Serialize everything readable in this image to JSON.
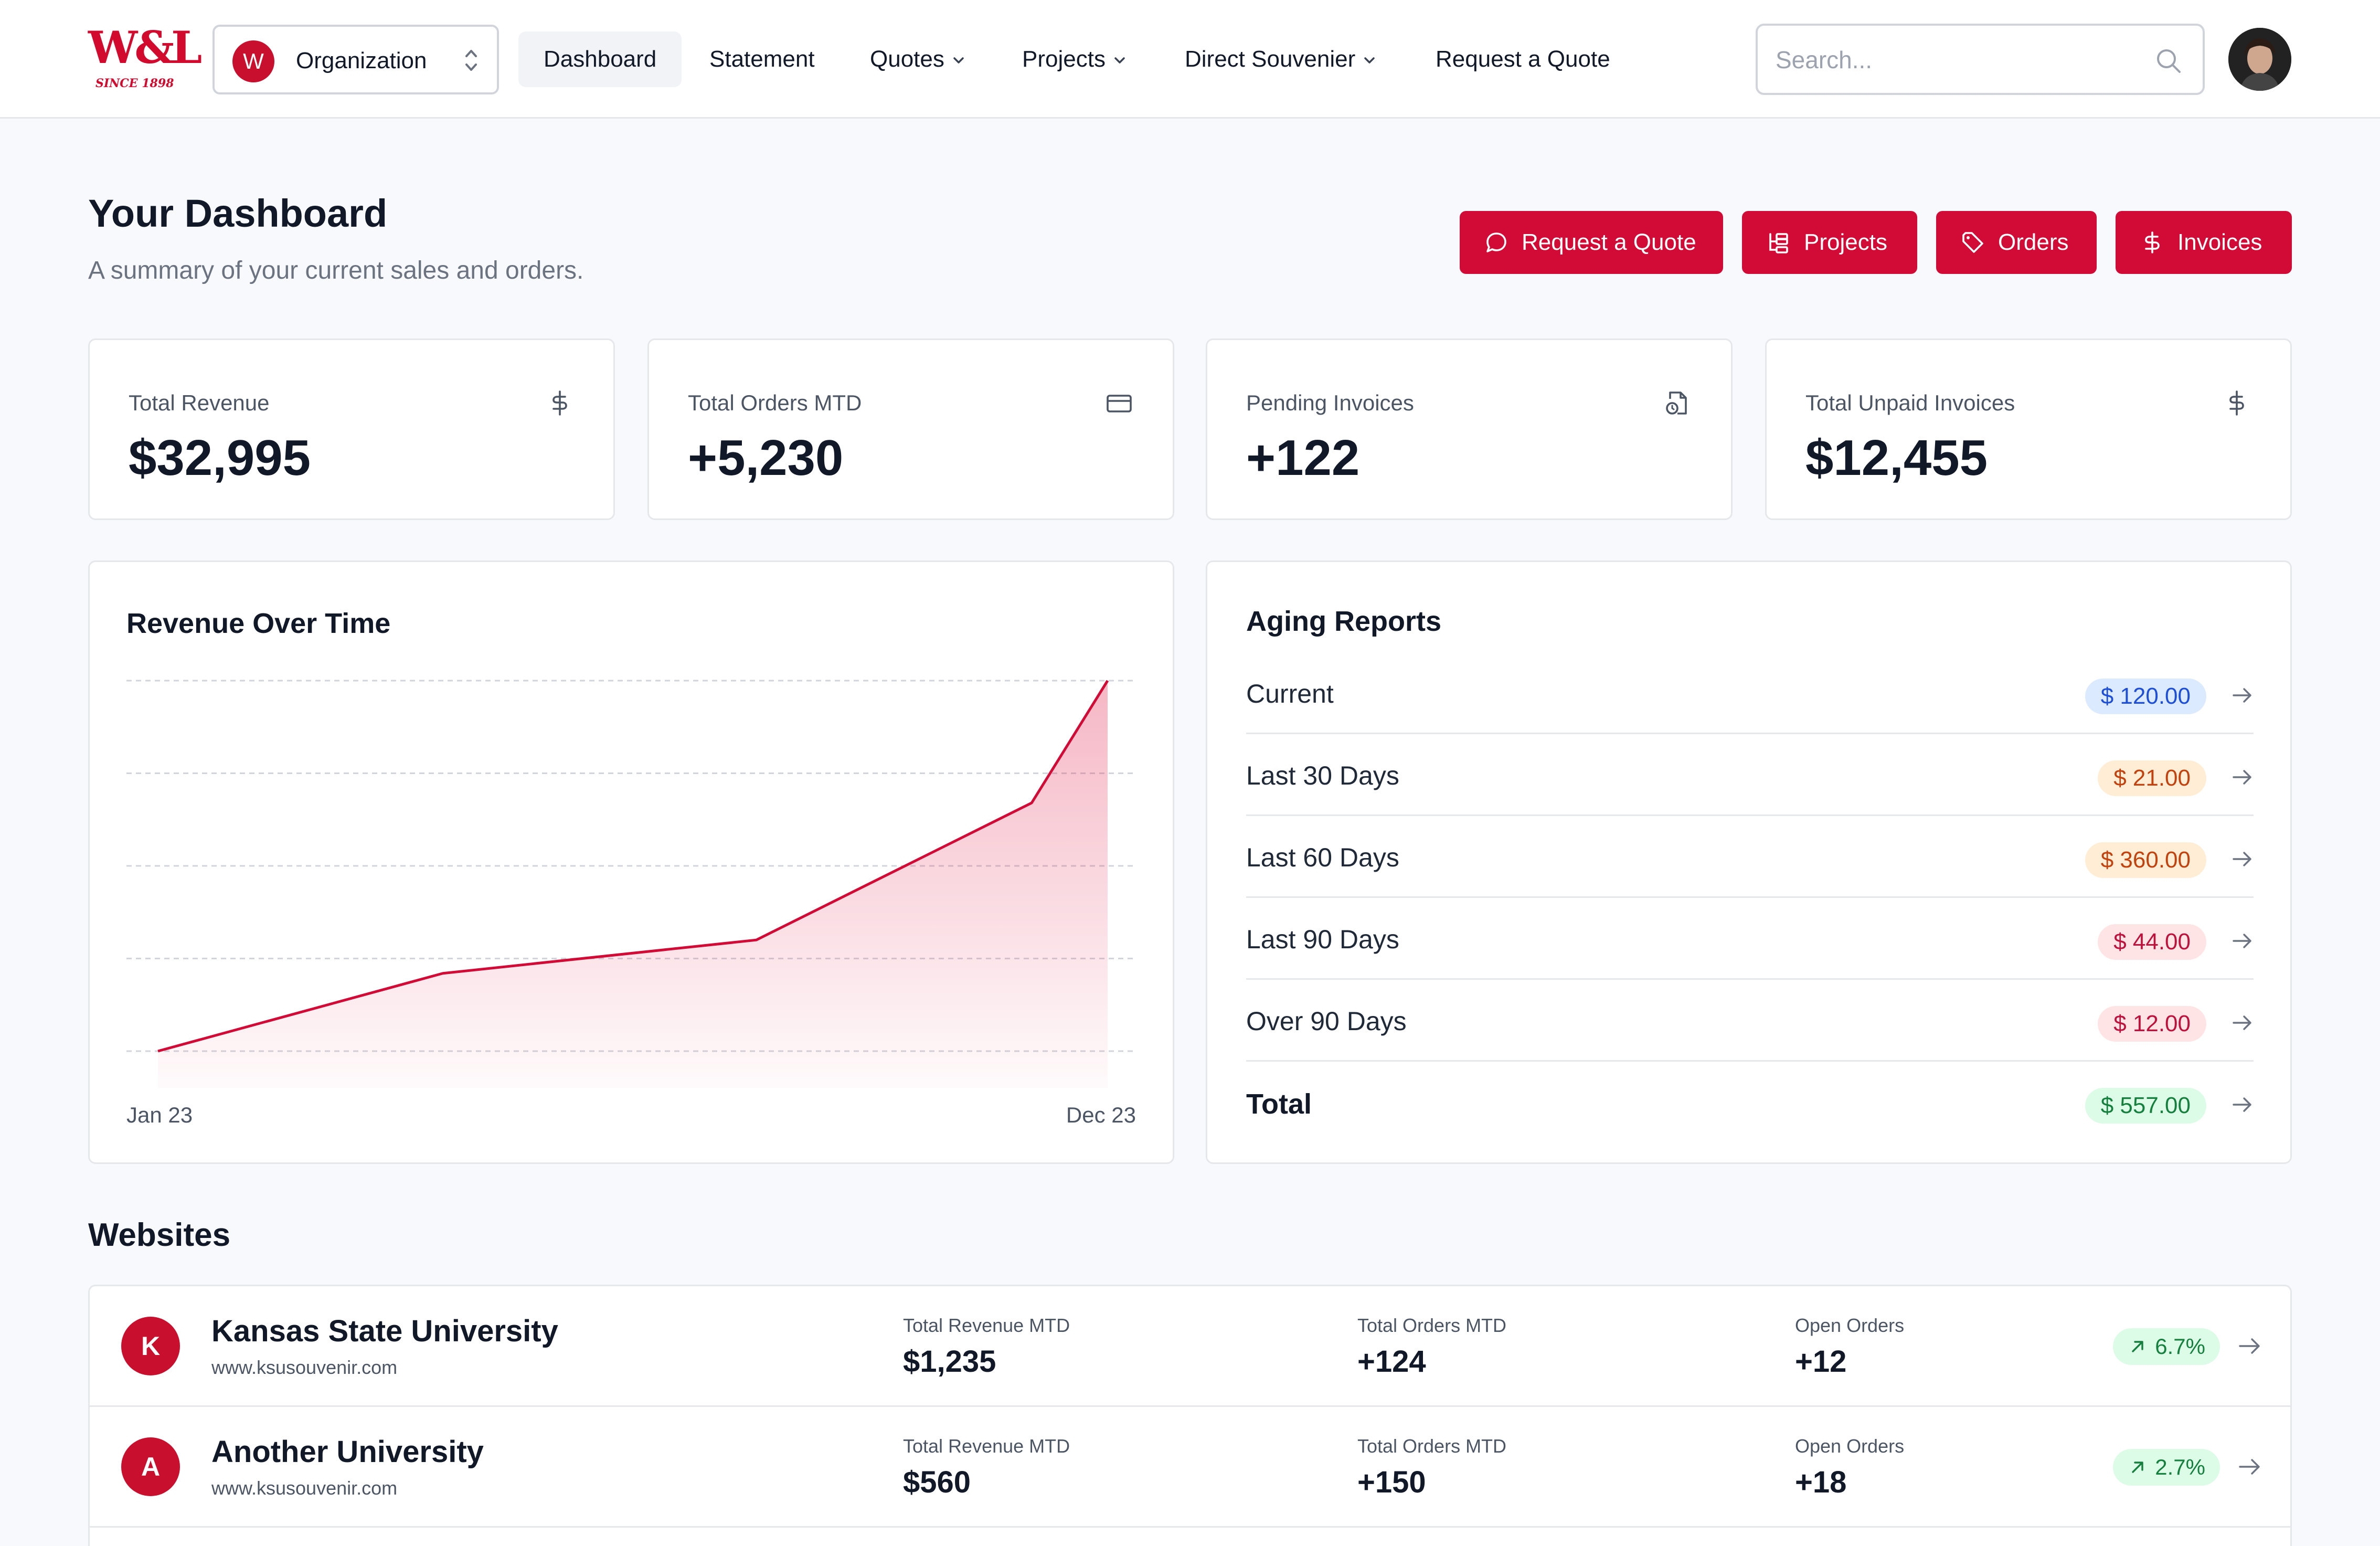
{
  "header": {
    "logo_text": "W&L",
    "logo_since": "SINCE 1898",
    "org": {
      "initial": "W",
      "label": "Organization"
    },
    "nav": [
      {
        "label": "Dashboard",
        "active": true
      },
      {
        "label": "Statement"
      },
      {
        "label": "Quotes",
        "dropdown": true
      },
      {
        "label": "Projects",
        "dropdown": true
      },
      {
        "label": "Direct Souvenier",
        "dropdown": true
      },
      {
        "label": "Request a Quote"
      }
    ],
    "search_placeholder": "Search..."
  },
  "page": {
    "title": "Your Dashboard",
    "subtitle": "A summary of your current sales and orders.",
    "actions": [
      {
        "label": "Request a Quote",
        "icon": "chat-bubble-icon"
      },
      {
        "label": "Projects",
        "icon": "hierarchy-icon"
      },
      {
        "label": "Orders",
        "icon": "tag-icon"
      },
      {
        "label": "Invoices",
        "icon": "dollar-icon"
      }
    ],
    "accent_color": "#d10a36"
  },
  "stats": [
    {
      "label": "Total Revenue",
      "value": "$32,995",
      "icon": "dollar-icon"
    },
    {
      "label": "Total Orders MTD",
      "value": "+5,230",
      "icon": "credit-card-icon"
    },
    {
      "label": "Pending Invoices",
      "value": "+122",
      "icon": "file-clock-icon"
    },
    {
      "label": "Total Unpaid Invoices",
      "value": "$12,455",
      "icon": "dollar-icon"
    }
  ],
  "revenue_chart": {
    "title": "Revenue Over Time",
    "x_start_label": "Jan 23",
    "x_end_label": "Dec 23"
  },
  "chart_data": {
    "type": "area",
    "title": "Revenue Over Time",
    "x": [
      "Jan 23",
      "",
      "",
      "",
      "Dec 23"
    ],
    "values": [
      0,
      0.21,
      0.3,
      0.67,
      1.0
    ],
    "line_color": "#d10a36",
    "grid": true
  },
  "aging": {
    "title": "Aging Reports",
    "rows": [
      {
        "label": "Current",
        "amount": "$ 120.00",
        "bg": "#dbeafe",
        "fg": "#1d4ed8"
      },
      {
        "label": "Last 30 Days",
        "amount": "$ 21.00",
        "bg": "#ffedd5",
        "fg": "#c2410c"
      },
      {
        "label": "Last 60 Days",
        "amount": "$ 360.00",
        "bg": "#ffedd5",
        "fg": "#c2410c"
      },
      {
        "label": "Last 90 Days",
        "amount": "$ 44.00",
        "bg": "#ffe4e6",
        "fg": "#be123c"
      },
      {
        "label": "Over 90 Days",
        "amount": "$ 12.00",
        "bg": "#ffe4e6",
        "fg": "#be123c"
      },
      {
        "label": "Total",
        "amount": "$ 557.00",
        "bg": "#dcfce7",
        "fg": "#15803d"
      }
    ]
  },
  "websites": {
    "title": "Websites",
    "rows": [
      {
        "initial": "K",
        "name": "Kansas State University",
        "url": "www.ksusouvenir.com",
        "revenue_label": "Total Revenue MTD",
        "revenue": "$1,235",
        "orders_label": "Total Orders MTD",
        "orders": "+124",
        "open_label": "Open Orders",
        "open": "+12",
        "trend": "6.7%"
      },
      {
        "initial": "A",
        "name": "Another University",
        "url": "www.ksusouvenir.com",
        "revenue_label": "Total Revenue MTD",
        "revenue": "$560",
        "orders_label": "Total Orders MTD",
        "orders": "+150",
        "open_label": "Open Orders",
        "open": "+18",
        "trend": "2.7%"
      }
    ]
  }
}
